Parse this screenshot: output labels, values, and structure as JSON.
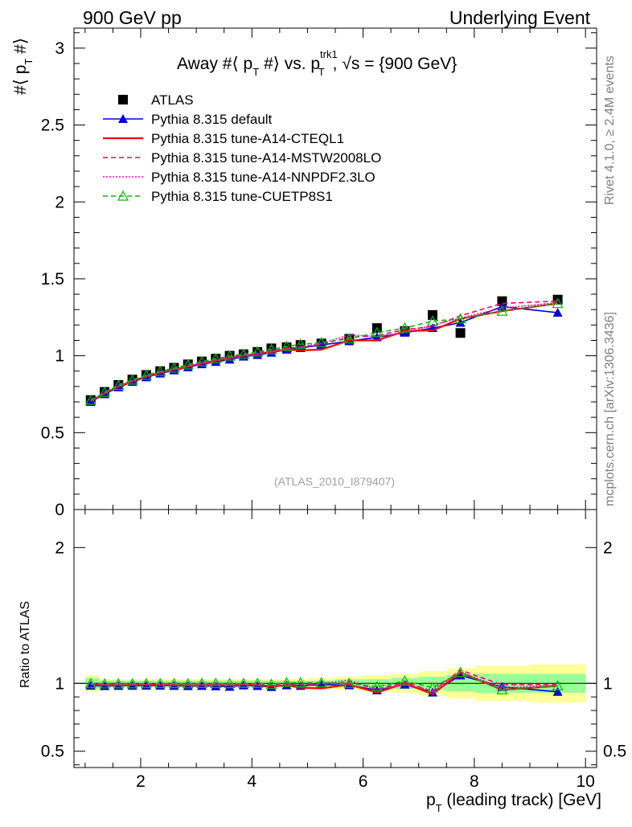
{
  "header": {
    "left": "900 GeV pp",
    "right": "Underlying Event"
  },
  "side_labels": {
    "upper": "Rivet 4.1.0, ≥ 2.4M events",
    "lower": "mcplots.cern.ch [arXiv:1306.3436]"
  },
  "chart_data": {
    "type": "line",
    "title": "Away #⟨ p_T #⟩ vs. p_T^trk1, √s = {900 GeV}",
    "title_parts": {
      "main": "Away #⟨ p",
      "sub_t": "T",
      "mid": " #⟩ vs. p",
      "sup": "trk1",
      "sub2": "T",
      "tail": ", √s = {900 GeV}"
    },
    "watermark": "(ATLAS_2010_I879407)",
    "ylabel": "#⟨ p_T #⟩",
    "ylabel_parts": {
      "a": "#⟨ p",
      "sub": "T",
      "b": " #⟩"
    },
    "xlabel": "p_T (leading track) [GeV]",
    "xlabel_parts": {
      "a": "p",
      "sub": "T",
      "b": " (leading track) [GeV]"
    },
    "ratio_ylabel": "Ratio to ATLAS",
    "xlim": [
      0.8,
      10.2
    ],
    "ylim": [
      0,
      3.13
    ],
    "ratio_ylim": [
      0.38,
      2.28
    ],
    "x_ticks": [
      2,
      4,
      6,
      8,
      10
    ],
    "x_tick_labels": [
      "2",
      "4",
      "6",
      "8",
      "10"
    ],
    "y_ticks": [
      0.5,
      1,
      1.5,
      2,
      2.5,
      3
    ],
    "y_tick_labels": [
      "0.5",
      "1",
      "1.5",
      "2",
      "2.5",
      "3"
    ],
    "y_zero_label": "0",
    "ratio_ticks": [
      0.5,
      1,
      2
    ],
    "ratio_tick_labels": [
      "0.5",
      "1",
      "2"
    ],
    "x": [
      1.1,
      1.35,
      1.6,
      1.85,
      2.1,
      2.35,
      2.6,
      2.85,
      3.1,
      3.35,
      3.6,
      3.85,
      4.1,
      4.35,
      4.625,
      4.875,
      5.25,
      5.75,
      6.25,
      6.75,
      7.25,
      7.75,
      8.5,
      9.5
    ],
    "x_bin_edges": [
      1.0,
      1.25,
      1.5,
      1.75,
      2.0,
      2.25,
      2.5,
      2.75,
      3.0,
      3.25,
      3.5,
      3.75,
      4.0,
      4.25,
      4.5,
      4.75,
      5.0,
      5.5,
      6.0,
      6.5,
      7.0,
      7.5,
      8.0,
      9.0,
      10.0
    ],
    "band_inner": [
      0.04,
      0.02,
      0.02,
      0.02,
      0.02,
      0.02,
      0.02,
      0.02,
      0.02,
      0.02,
      0.02,
      0.02,
      0.02,
      0.02,
      0.02,
      0.02,
      0.02,
      0.03,
      0.03,
      0.04,
      0.05,
      0.06,
      0.07,
      0.07
    ],
    "band_outer": [
      0.06,
      0.03,
      0.03,
      0.03,
      0.03,
      0.03,
      0.03,
      0.03,
      0.03,
      0.03,
      0.03,
      0.03,
      0.03,
      0.03,
      0.03,
      0.03,
      0.04,
      0.05,
      0.06,
      0.07,
      0.09,
      0.11,
      0.13,
      0.14
    ],
    "series": [
      {
        "name": "ATLAS",
        "color": "#000000",
        "marker": "square",
        "dash": "none",
        "values": [
          0.712,
          0.765,
          0.81,
          0.845,
          0.875,
          0.9,
          0.922,
          0.944,
          0.963,
          0.981,
          1.0,
          1.01,
          1.025,
          1.048,
          1.055,
          1.07,
          1.08,
          1.11,
          1.18,
          1.16,
          1.265,
          1.148,
          1.355,
          1.365
        ]
      },
      {
        "name": "Pythia 8.315 default",
        "color": "#0000dd",
        "marker": "triangle",
        "dash": "none",
        "values": [
          0.7,
          0.75,
          0.795,
          0.83,
          0.86,
          0.885,
          0.905,
          0.925,
          0.945,
          0.96,
          0.975,
          0.995,
          1.005,
          1.02,
          1.04,
          1.05,
          1.07,
          1.095,
          1.12,
          1.15,
          1.18,
          1.215,
          1.32,
          1.28
        ]
      },
      {
        "name": "Pythia 8.315 tune-A14-CTEQL1",
        "color": "#ff0000",
        "marker": "none",
        "dash": "none",
        "values": [
          0.705,
          0.756,
          0.8,
          0.835,
          0.866,
          0.89,
          0.91,
          0.93,
          0.95,
          0.968,
          0.985,
          1.0,
          1.012,
          1.025,
          1.04,
          1.035,
          1.04,
          1.1,
          1.1,
          1.16,
          1.165,
          1.24,
          1.29,
          1.34
        ]
      },
      {
        "name": "Pythia 8.315 tune-A14-MSTW2008LO",
        "color": "#ff0066",
        "marker": "none",
        "dash": "6,4",
        "values": [
          0.708,
          0.758,
          0.803,
          0.838,
          0.87,
          0.893,
          0.915,
          0.934,
          0.955,
          0.972,
          0.99,
          1.005,
          1.018,
          1.03,
          1.05,
          1.055,
          1.075,
          1.12,
          1.13,
          1.17,
          1.19,
          1.26,
          1.34,
          1.355
        ]
      },
      {
        "name": "Pythia 8.315 tune-A14-NNPDF2.3LO",
        "color": "#ff00cc",
        "marker": "none",
        "dash": "2,2",
        "values": [
          0.707,
          0.757,
          0.802,
          0.837,
          0.868,
          0.892,
          0.913,
          0.932,
          0.952,
          0.97,
          0.988,
          1.003,
          1.015,
          1.028,
          1.045,
          1.06,
          1.08,
          1.135,
          1.125,
          1.15,
          1.2,
          1.245,
          1.31,
          1.345
        ]
      },
      {
        "name": "Pythia 8.315 tune-CUETP8S1",
        "color": "#00bb00",
        "marker": "open-triangle",
        "dash": "6,4",
        "values": [
          0.71,
          0.762,
          0.807,
          0.842,
          0.873,
          0.898,
          0.92,
          0.941,
          0.962,
          0.98,
          0.998,
          1.01,
          1.025,
          1.04,
          1.06,
          1.075,
          1.085,
          1.11,
          1.15,
          1.18,
          1.225,
          1.24,
          1.29,
          1.34
        ]
      }
    ]
  }
}
